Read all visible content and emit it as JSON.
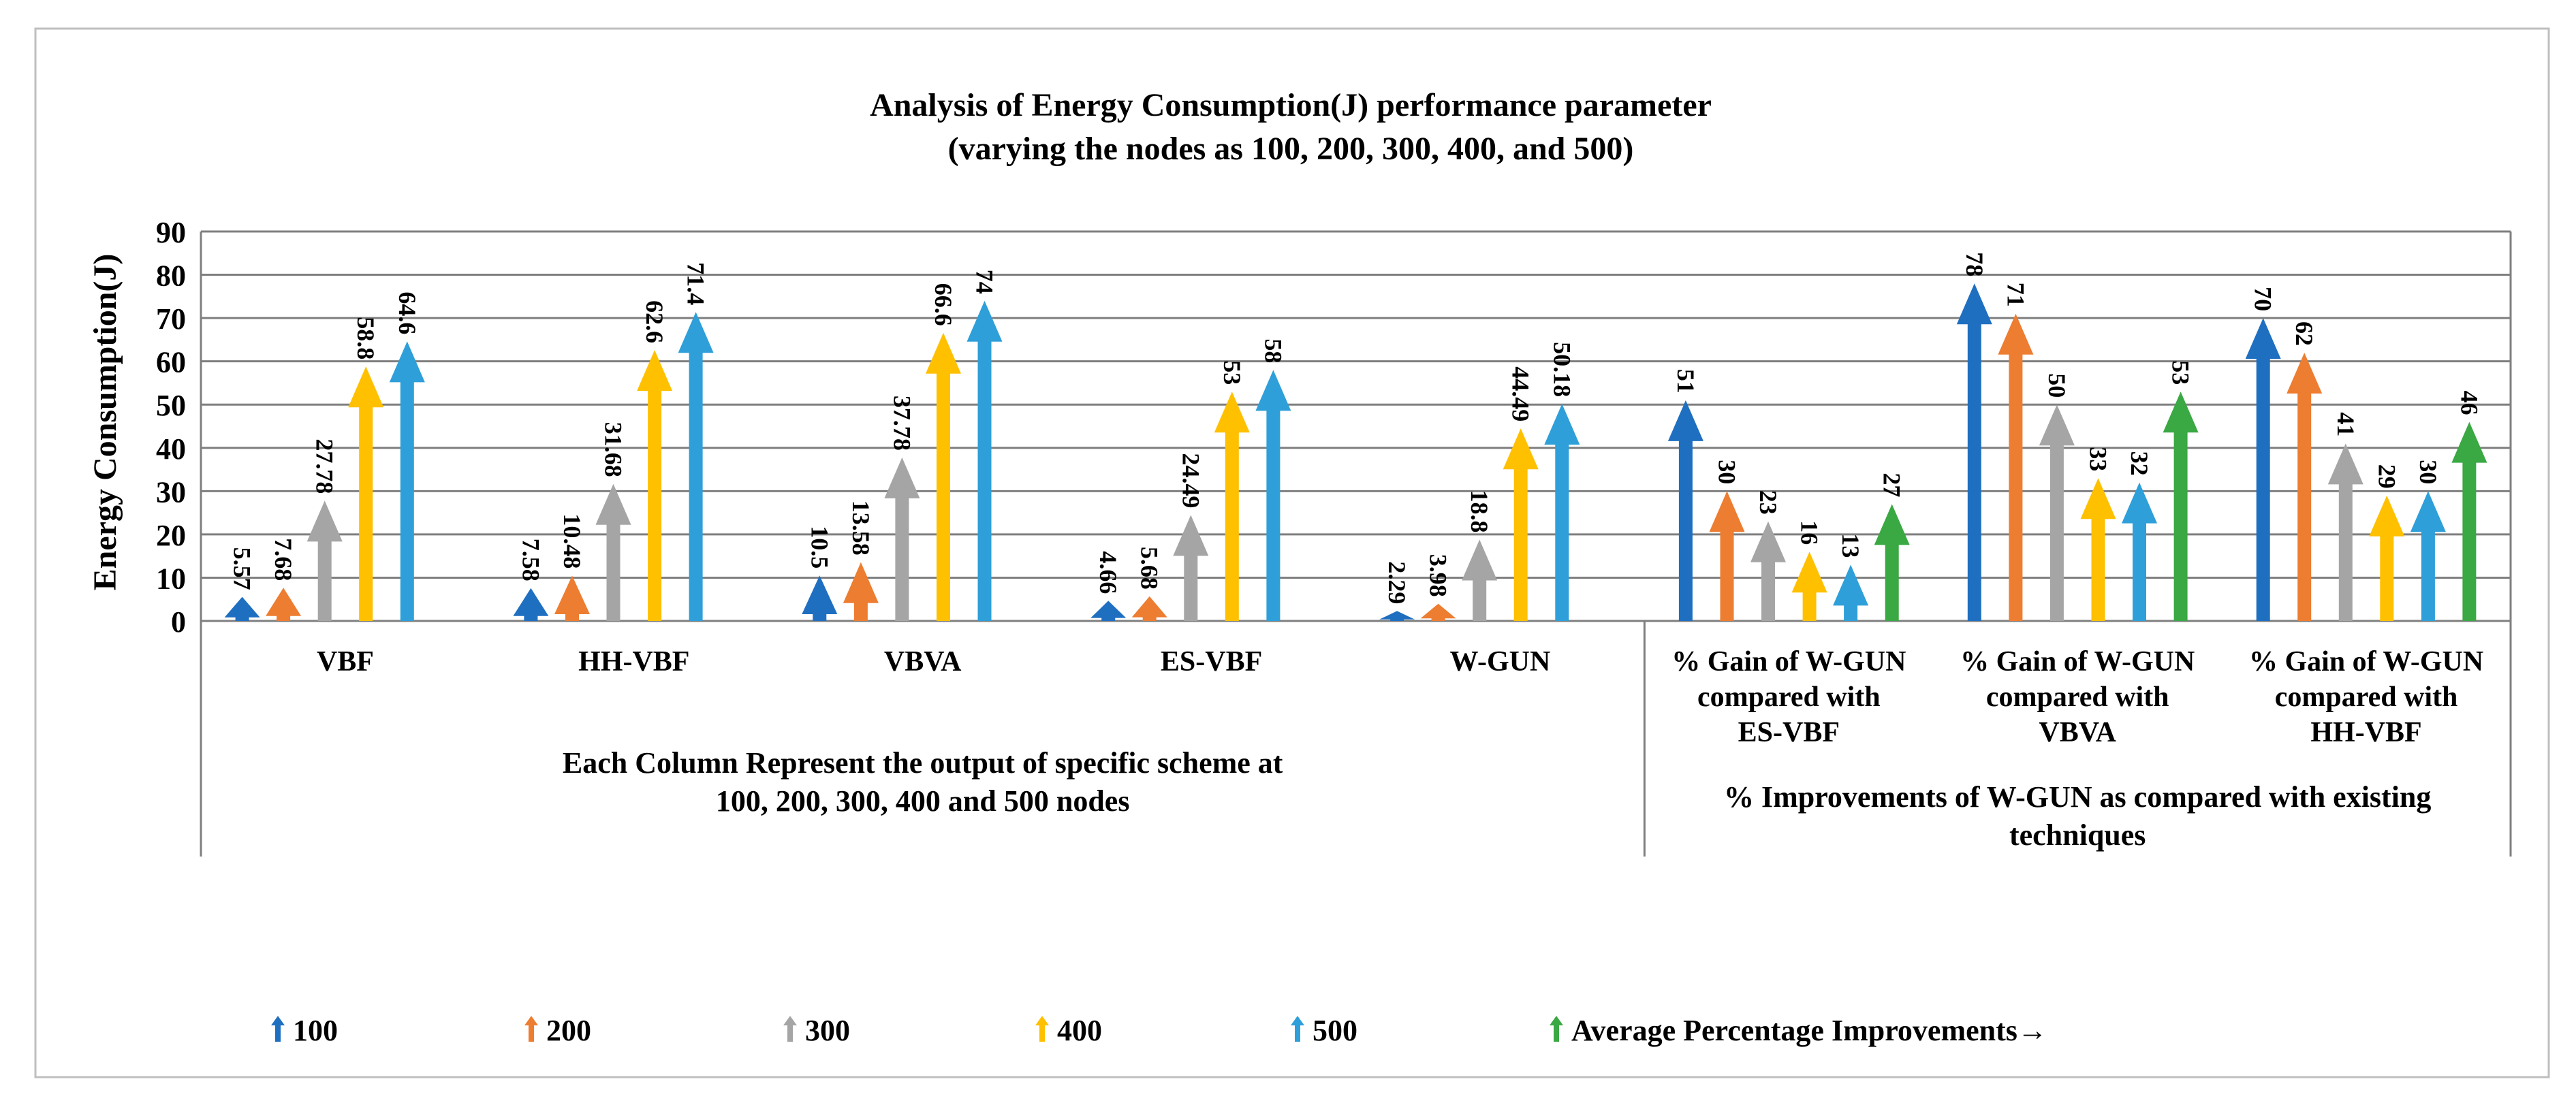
{
  "chart_data": {
    "type": "bar",
    "title": "Analysis of Energy Consumption(J) performance parameter",
    "subtitle": "(varying the nodes as 100, 200, 300, 400, and 500)",
    "ylabel": "Energy Consumption(J)",
    "ylim": [
      0,
      90
    ],
    "yticks": [
      "0",
      "10",
      "20",
      "30",
      "40",
      "50",
      "60",
      "70",
      "80",
      "90"
    ],
    "grid": true,
    "legend_position": "bottom",
    "categories": [
      "VBF",
      "HH-VBF",
      "VBVA",
      "ES-VBF",
      "W-GUN",
      "% Gain of W-GUN compared with ES-VBF",
      "% Gain of W-GUN compared with VBVA",
      "% Gain of W-GUN compared with HH-VBF"
    ],
    "category_label_lines": [
      [
        "VBF"
      ],
      [
        "HH-VBF"
      ],
      [
        "VBVA"
      ],
      [
        "ES-VBF"
      ],
      [
        "W-GUN"
      ],
      [
        "% Gain of W-GUN",
        "compared with",
        "ES-VBF"
      ],
      [
        "% Gain of W-GUN",
        "compared with",
        "VBVA"
      ],
      [
        "% Gain of W-GUN",
        "compared with",
        "HH-VBF"
      ]
    ],
    "group_labels": [
      {
        "lines": [
          "Each Column Represent the output of specific scheme at",
          "100, 200, 300, 400 and 500 nodes"
        ],
        "span": [
          0,
          4
        ]
      },
      {
        "lines": [
          "% Improvements of W-GUN as compared with existing",
          "techniques"
        ],
        "span": [
          5,
          7
        ]
      }
    ],
    "series": [
      {
        "name": "100",
        "color": "#1f6fc1",
        "values": [
          5.57,
          7.58,
          10.5,
          4.66,
          2.29,
          51,
          78,
          70
        ],
        "labels": [
          "5.57",
          "7.58",
          "10.5",
          "4.66",
          "2.29",
          "51",
          "78",
          "70"
        ]
      },
      {
        "name": "200",
        "color": "#ed7d31",
        "values": [
          7.68,
          10.48,
          13.58,
          5.68,
          3.98,
          30,
          71,
          62
        ],
        "labels": [
          "7.68",
          "10.48",
          "13.58",
          "5.68",
          "3.98",
          "30",
          "71",
          "62"
        ]
      },
      {
        "name": "300",
        "color": "#a5a5a5",
        "values": [
          27.78,
          31.68,
          37.78,
          24.49,
          18.8,
          23,
          50,
          41
        ],
        "labels": [
          "27.78",
          "31.68",
          "37.78",
          "24.49",
          "18.8",
          "23",
          "50",
          "41"
        ]
      },
      {
        "name": "400",
        "color": "#ffc000",
        "values": [
          58.8,
          62.6,
          66.6,
          53,
          44.49,
          16,
          33,
          29
        ],
        "labels": [
          "58.8",
          "62.6",
          "66.6",
          "53",
          "44.49",
          "16",
          "33",
          "29"
        ]
      },
      {
        "name": "500",
        "color": "#2e9fd9",
        "values": [
          64.6,
          71.4,
          74,
          58,
          50.18,
          13,
          32,
          30
        ],
        "labels": [
          "64.6",
          "71.4",
          "74",
          "58",
          "50.18",
          "13",
          "32",
          "30"
        ]
      },
      {
        "name": "Average Percentage Improvements→",
        "color": "#3aa843",
        "values": [
          null,
          null,
          null,
          null,
          null,
          27,
          53,
          46
        ],
        "labels": [
          "",
          "",
          "",
          "",
          "",
          "27",
          "53",
          "46"
        ]
      }
    ]
  }
}
